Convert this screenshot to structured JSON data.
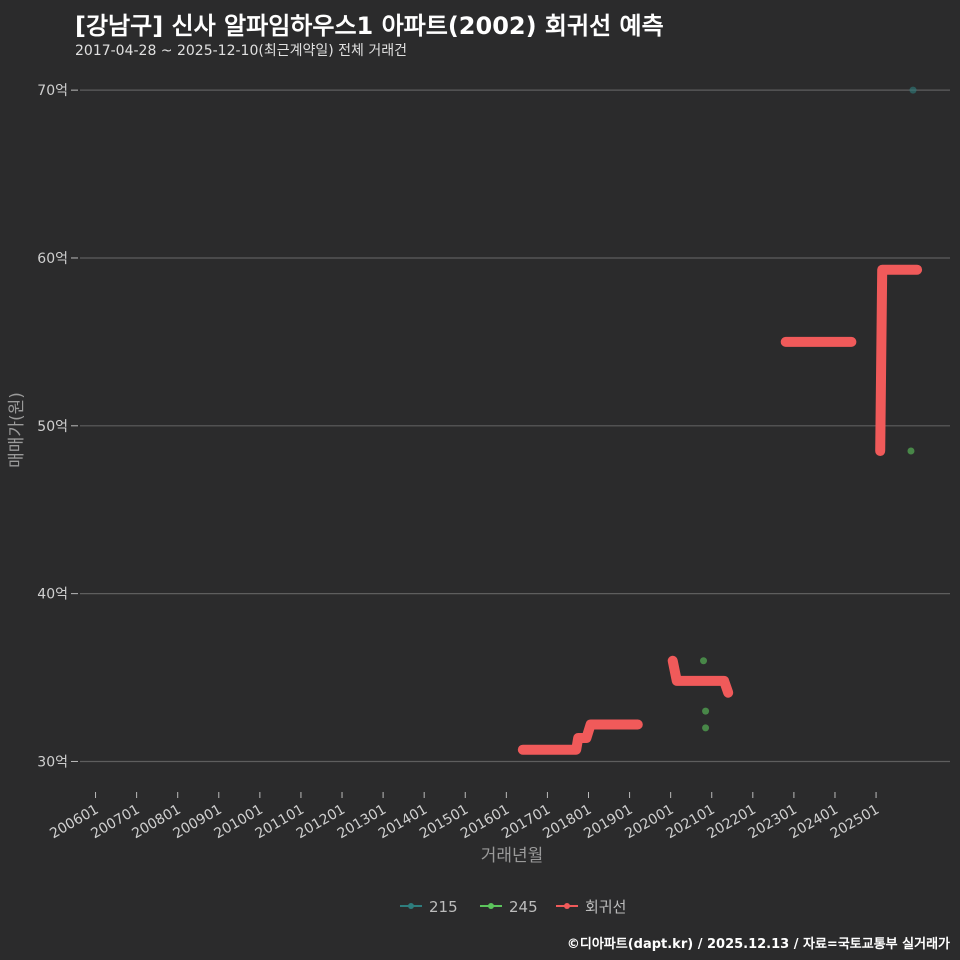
{
  "header": {
    "title": "[강남구] 신사 알파임하우스1 아파트(2002) 회귀선 예측",
    "subtitle": "2017-04-28 ~ 2025-12-10(최근계약일) 전체 거래건"
  },
  "footer": {
    "credit": "©디아파트(dapt.kr) / 2025.12.13 / 자료=국토교통부 실거래가"
  },
  "colors": {
    "background": "#2b2b2c",
    "grid": "#5e5e5e",
    "series_215": "#2e7d7d",
    "series_245": "#5cc45c",
    "regression": "#f05a5a"
  },
  "chart_data": {
    "type": "scatter",
    "xlabel": "거래년월",
    "ylabel": "매매가(원)",
    "ylim": [
      28.3,
      71.2
    ],
    "xlim": [
      2005.5,
      2026.8
    ],
    "y_ticks": [
      {
        "value": 30,
        "label": "30억"
      },
      {
        "value": 40,
        "label": "40억"
      },
      {
        "value": 50,
        "label": "50억"
      },
      {
        "value": 60,
        "label": "60억"
      },
      {
        "value": 70,
        "label": "70억"
      }
    ],
    "x_ticks": [
      {
        "value": 2006,
        "label": "200601"
      },
      {
        "value": 2007,
        "label": "200701"
      },
      {
        "value": 2008,
        "label": "200801"
      },
      {
        "value": 2009,
        "label": "200901"
      },
      {
        "value": 2010,
        "label": "201001"
      },
      {
        "value": 2011,
        "label": "201101"
      },
      {
        "value": 2012,
        "label": "201201"
      },
      {
        "value": 2013,
        "label": "201301"
      },
      {
        "value": 2014,
        "label": "201401"
      },
      {
        "value": 2015,
        "label": "201501"
      },
      {
        "value": 2016,
        "label": "201601"
      },
      {
        "value": 2017,
        "label": "201701"
      },
      {
        "value": 2018,
        "label": "201801"
      },
      {
        "value": 2019,
        "label": "201901"
      },
      {
        "value": 2020,
        "label": "202001"
      },
      {
        "value": 2021,
        "label": "202101"
      },
      {
        "value": 2022,
        "label": "202201"
      },
      {
        "value": 2023,
        "label": "202301"
      },
      {
        "value": 2024,
        "label": "202401"
      },
      {
        "value": 2025,
        "label": "202501"
      }
    ],
    "series": [
      {
        "name": "215",
        "points": [
          {
            "x": 2025.9,
            "y": 70
          }
        ]
      },
      {
        "name": "245",
        "points": [
          {
            "x": 2020.8,
            "y": 36
          },
          {
            "x": 2020.85,
            "y": 33
          },
          {
            "x": 2020.85,
            "y": 32
          },
          {
            "x": 2025.85,
            "y": 48.5
          }
        ]
      }
    ],
    "regression": [
      [
        [
          2016.4,
          30.7
        ],
        [
          2017.7,
          30.7
        ],
        [
          2017.75,
          31.4
        ],
        [
          2017.95,
          31.4
        ],
        [
          2018.05,
          32.2
        ],
        [
          2019.2,
          32.2
        ]
      ],
      [
        [
          2020.05,
          36.0
        ],
        [
          2020.15,
          34.8
        ],
        [
          2021.3,
          34.8
        ],
        [
          2021.4,
          34.1
        ]
      ],
      [
        [
          2022.8,
          55.0
        ],
        [
          2024.4,
          55.0
        ]
      ],
      [
        [
          2025.1,
          48.5
        ],
        [
          2025.15,
          59.3
        ],
        [
          2026.0,
          59.3
        ]
      ]
    ],
    "legend": {
      "position": "bottom",
      "items": [
        {
          "label": "215",
          "color": "#2e7d7d"
        },
        {
          "label": "245",
          "color": "#5cc45c"
        },
        {
          "label": "회귀선",
          "color": "#f05a5a"
        }
      ]
    }
  }
}
